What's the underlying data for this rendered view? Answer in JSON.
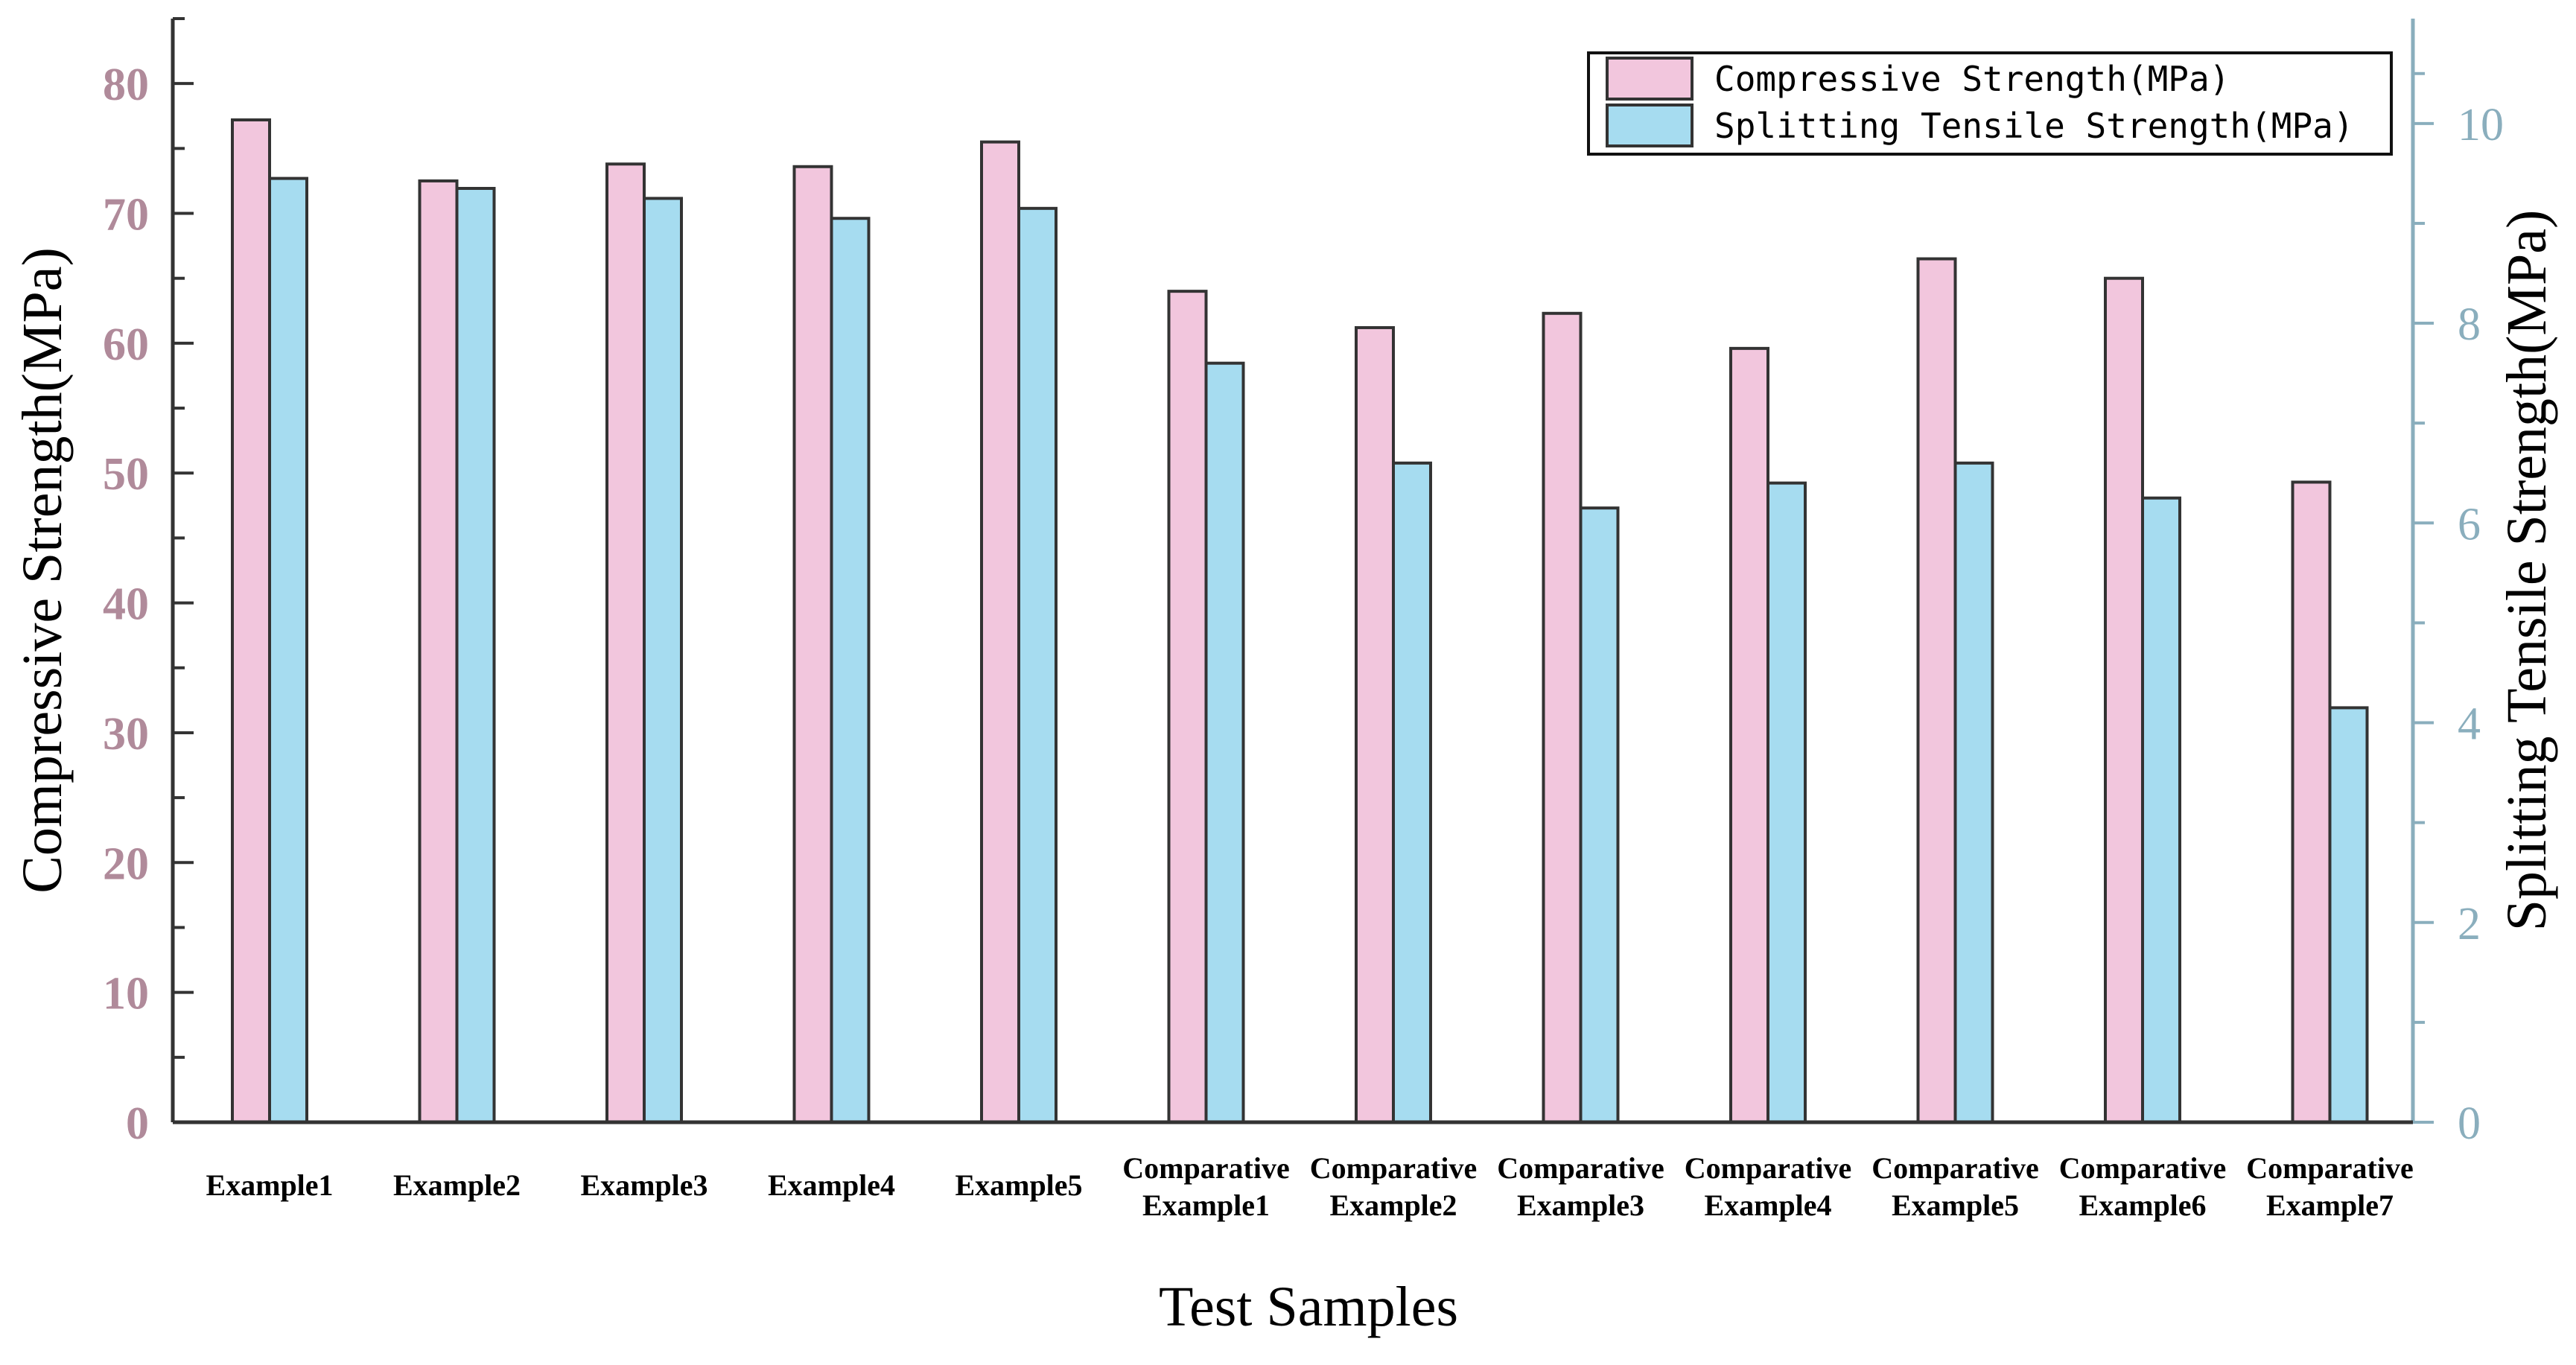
{
  "chart_data": {
    "type": "bar",
    "xlabel": "Test Samples",
    "categories": [
      [
        "Example1"
      ],
      [
        "Example2"
      ],
      [
        "Example3"
      ],
      [
        "Example4"
      ],
      [
        "Example5"
      ],
      [
        "Comparative",
        "Example1"
      ],
      [
        "Comparative",
        "Example2"
      ],
      [
        "Comparative",
        "Example3"
      ],
      [
        "Comparative",
        "Example4"
      ],
      [
        "Comparative",
        "Example5"
      ],
      [
        "Comparative",
        "Example6"
      ],
      [
        "Comparative",
        "Example7"
      ]
    ],
    "series": [
      {
        "name": "Compressive Strength(MPa)",
        "axis": "left",
        "color": "#f2c6dd",
        "values": [
          77.2,
          72.5,
          73.8,
          73.6,
          75.5,
          64.0,
          61.2,
          62.3,
          59.6,
          66.5,
          65.0,
          49.3
        ]
      },
      {
        "name": "Splitting Tensile Strength(MPa)",
        "axis": "right",
        "color": "#a6dcf0",
        "values": [
          9.45,
          9.35,
          9.25,
          9.05,
          9.15,
          7.6,
          6.6,
          6.15,
          6.4,
          6.6,
          6.25,
          4.15
        ]
      }
    ],
    "y_left": {
      "label": "Compressive Strength(MPa)",
      "ylim": [
        0,
        85
      ],
      "ticks": [
        0,
        10,
        20,
        30,
        40,
        50,
        60,
        70,
        80
      ],
      "color": "#b08a9a"
    },
    "y_right": {
      "label": "Splitting Tensile Strength(MPa)",
      "ylim": [
        0,
        11.05
      ],
      "ticks": [
        0,
        2,
        4,
        6,
        8,
        10
      ],
      "color": "#8aaebd"
    },
    "legend": "top-right",
    "grid": false
  }
}
